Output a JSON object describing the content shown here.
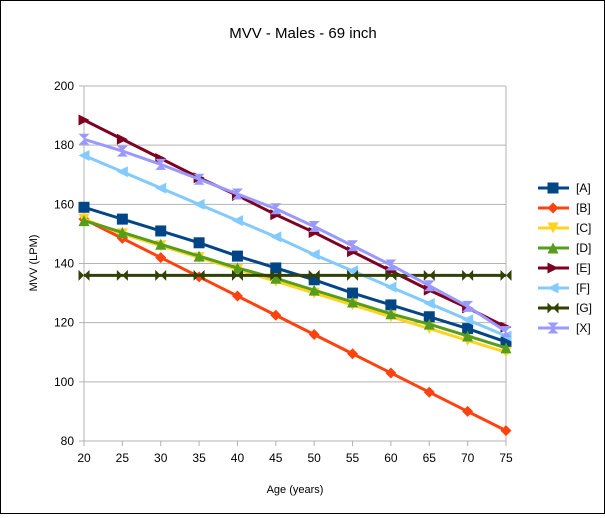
{
  "chart_data": {
    "type": "line",
    "title": "MVV - Males - 69 inch",
    "xlabel": "Age (years)",
    "ylabel": "MVV (LPM)",
    "xlim": [
      20,
      75
    ],
    "ylim": [
      80,
      200
    ],
    "grid": true,
    "legend_position": "right",
    "x": [
      20,
      25,
      30,
      35,
      40,
      45,
      50,
      55,
      60,
      65,
      70,
      75
    ],
    "yticks": [
      80,
      100,
      120,
      140,
      160,
      180,
      200
    ],
    "series": [
      {
        "name": "[A]",
        "color": "#004586",
        "marker": "square",
        "values": [
          159,
          155,
          151,
          147,
          142.5,
          138.5,
          134.5,
          130,
          126,
          122,
          118,
          113.5
        ]
      },
      {
        "name": "[B]",
        "color": "#ff420e",
        "marker": "diamond",
        "values": [
          155,
          148.5,
          142,
          135.5,
          129,
          122.5,
          116,
          109.5,
          103,
          96.5,
          90,
          83.5
        ]
      },
      {
        "name": "[C]",
        "color": "#ffd320",
        "marker": "triangle-down",
        "values": [
          155,
          150,
          146,
          142,
          138,
          134,
          130,
          126,
          122,
          118,
          114,
          110
        ]
      },
      {
        "name": "[D]",
        "color": "#579d1c",
        "marker": "triangle-up",
        "values": [
          154.5,
          150.5,
          146.5,
          142.5,
          138.5,
          135,
          131,
          127,
          123,
          119.5,
          115.5,
          111.5
        ]
      },
      {
        "name": "[E]",
        "color": "#7e0021",
        "marker": "triangle-right",
        "values": [
          188.5,
          182,
          175.5,
          169,
          163,
          156.5,
          150.5,
          144,
          137.5,
          131,
          125,
          118.5
        ]
      },
      {
        "name": "[F]",
        "color": "#83caff",
        "marker": "triangle-left",
        "values": [
          176.5,
          171,
          165.5,
          160,
          154.5,
          149,
          143,
          137.5,
          132,
          126.5,
          121,
          115.5
        ]
      },
      {
        "name": "[G]",
        "color": "#314004",
        "marker": "bowtie",
        "values": [
          136,
          136,
          136,
          136,
          136,
          136,
          136,
          136,
          136,
          136,
          136,
          136
        ]
      },
      {
        "name": "[X]",
        "color": "#aecf00",
        "marker": "hourglass",
        "values": [
          182,
          178,
          173.5,
          168.5,
          163.5,
          158.5,
          152.5,
          146,
          139.5,
          132.5,
          125.5,
          117
        ]
      }
    ]
  }
}
